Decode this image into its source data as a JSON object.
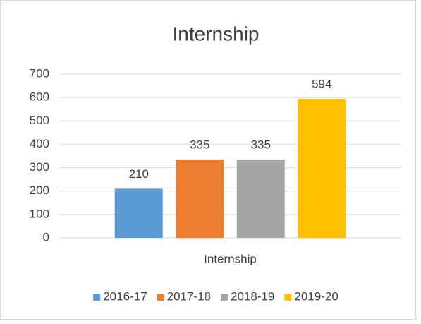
{
  "chart_data": {
    "type": "bar",
    "title": "Internship",
    "categories": [
      "Internship"
    ],
    "series": [
      {
        "name": "2016-17",
        "color": "#5b9bd5",
        "values": [
          210
        ]
      },
      {
        "name": "2017-18",
        "color": "#ed7d31",
        "values": [
          335
        ]
      },
      {
        "name": "2018-19",
        "color": "#a5a5a5",
        "values": [
          335
        ]
      },
      {
        "name": "2019-20",
        "color": "#ffc000",
        "values": [
          594
        ]
      }
    ],
    "ylim": [
      0,
      700
    ],
    "yticks": [
      0,
      100,
      200,
      300,
      400,
      500,
      600,
      700
    ],
    "grid": true,
    "legend": "bottom"
  }
}
